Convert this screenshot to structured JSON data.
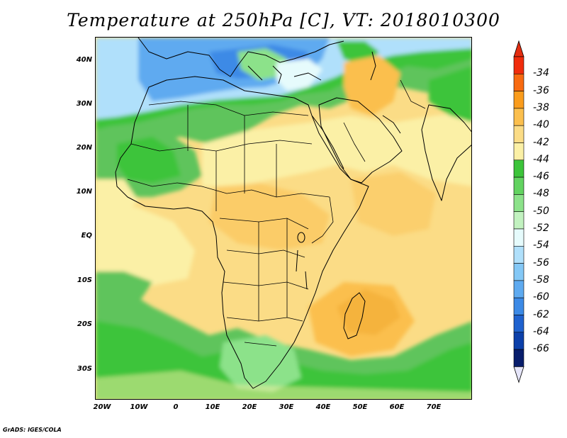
{
  "title": "Temperature at 250hPa [C], VT: 2018010300",
  "footer": "GrADS: IGES/COLA",
  "lat_labels": [
    "40N",
    "30N",
    "20N",
    "10N",
    "EQ",
    "10S",
    "20S",
    "30S"
  ],
  "lon_labels": [
    "20W",
    "10W",
    "0",
    "10E",
    "20E",
    "30E",
    "40E",
    "50E",
    "60E",
    "70E"
  ],
  "colorbar": {
    "labels": [
      "-34",
      "-36",
      "-38",
      "-40",
      "-42",
      "-44",
      "-46",
      "-48",
      "-50",
      "-52",
      "-54",
      "-56",
      "-58",
      "-60",
      "-62",
      "-64",
      "-66"
    ],
    "colors": [
      "#f02c0c",
      "#f86a10",
      "#fa9c1c",
      "#fbbf4e",
      "#fbdc86",
      "#fbf0a6",
      "#3cc43a",
      "#62d360",
      "#8ce28a",
      "#c2f2c0",
      "#e6fbfc",
      "#b0e0fb",
      "#84c8f6",
      "#5eaaf0",
      "#3c8ae6",
      "#1f62cf",
      "#0c40aa",
      "#081d6c"
    ],
    "under_color": "#e6e6fa",
    "over_color": "#e42d10"
  },
  "colors": {
    "coast": "#000000",
    "warm_core": "#f5b33c"
  }
}
